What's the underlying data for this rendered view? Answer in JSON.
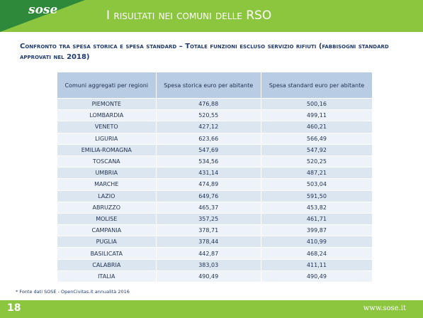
{
  "header": {
    "logo": "sose",
    "title": "I risultati nei comuni delle RSO"
  },
  "subtitle": "Confronto tra spesa storica e spesa standard – Totale funzioni escluso servizio rifiuti (fabbisogni standard approvati nel 2018)",
  "table": {
    "columns": [
      "Comuni aggregati per regioni",
      "Spesa storica euro per abitante",
      "Spesa standard euro per abitante"
    ],
    "rows": [
      [
        "PIEMONTE",
        "476,88",
        "500,16"
      ],
      [
        "LOMBARDIA",
        "520,55",
        "499,11"
      ],
      [
        "VENETO",
        "427,12",
        "460,21"
      ],
      [
        "LIGURIA",
        "623,66",
        "566,49"
      ],
      [
        "EMILIA-ROMAGNA",
        "547,69",
        "547,92"
      ],
      [
        "TOSCANA",
        "534,56",
        "520,25"
      ],
      [
        "UMBRIA",
        "431,14",
        "487,21"
      ],
      [
        "MARCHE",
        "474,89",
        "503,04"
      ],
      [
        "LAZIO",
        "649,76",
        "591,50"
      ],
      [
        "ABRUZZO",
        "465,37",
        "453,82"
      ],
      [
        "MOLISE",
        "357,25",
        "461,71"
      ],
      [
        "CAMPANIA",
        "378,71",
        "399,87"
      ],
      [
        "PUGLIA",
        "378,44",
        "410,99"
      ],
      [
        "BASILICATA",
        "442,87",
        "468,24"
      ],
      [
        "CALABRIA",
        "383,03",
        "411,11"
      ],
      [
        "ITALIA",
        "490,49",
        "490,49"
      ]
    ]
  },
  "footnote": "* Fonte dati SOSE - OpenCivitas.it annualità 2016",
  "footer": {
    "page": "18",
    "url": "www.sose.it"
  }
}
